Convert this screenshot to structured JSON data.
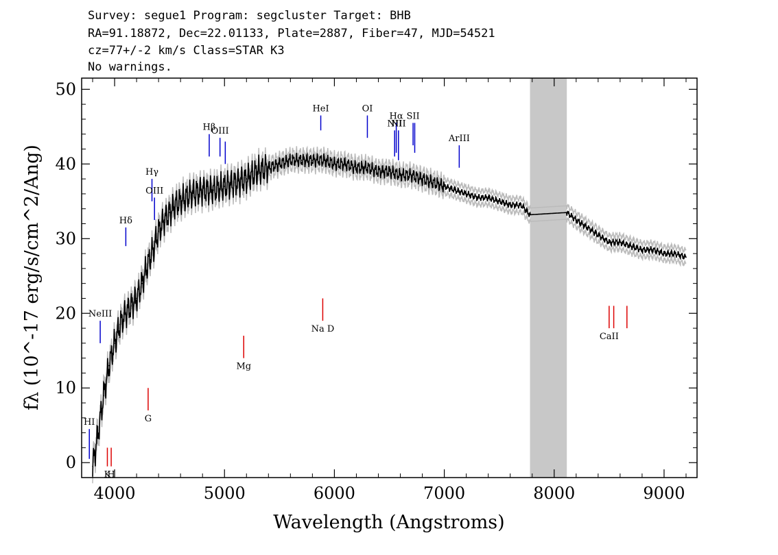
{
  "header": {
    "line1": "Survey: segue1 Program: segcluster Target: BHB",
    "line2": "RA=91.18872, Dec=22.01133, Plate=2887, Fiber=47, MJD=54521",
    "line3": "cz=77+/-2 km/s Class=STAR K3",
    "line4": "No warnings."
  },
  "chart_data": {
    "type": "line",
    "xlabel": "Wavelength (Angstroms)",
    "ylabel": "fλ (10^-17 erg/s/cm^2/Ang)",
    "xlim": [
      3700,
      9300
    ],
    "ylim": [
      -2,
      51.5
    ],
    "x_ticks": [
      4000,
      5000,
      6000,
      7000,
      8000,
      9000
    ],
    "y_ticks": [
      0,
      10,
      20,
      30,
      40,
      50
    ],
    "masked_region": [
      7780,
      8115
    ],
    "colors": {
      "flux": "#000000",
      "error_band": "#bbbbbb",
      "mask": "#c8c8c8",
      "emission": "#0000cc",
      "absorption": "#dd0000"
    },
    "series": [
      {
        "x": [
          3800,
          3850,
          3900,
          3950,
          4000,
          4050,
          4100,
          4150,
          4200,
          4250,
          4300,
          4350,
          4400,
          4450,
          4500,
          4550,
          4600,
          4700,
          4800,
          4900,
          5000,
          5100,
          5200,
          5300,
          5400,
          5500,
          5600,
          5700,
          5800,
          5900,
          6000,
          6100,
          6200,
          6300,
          6400,
          6500,
          6600,
          6700,
          6800,
          6900,
          7000,
          7100,
          7200,
          7300,
          7400,
          7500,
          7600,
          7700,
          7780,
          8115,
          8200,
          8300,
          8400,
          8500,
          8600,
          8700,
          8800,
          8900,
          9000,
          9100,
          9200
        ],
        "values": [
          -0.5,
          4,
          9,
          13,
          16,
          18.5,
          20,
          21,
          22,
          24,
          26.5,
          28.5,
          31,
          32.5,
          33.5,
          34.5,
          35,
          36,
          36.5,
          36.5,
          37,
          37.5,
          38,
          39,
          39.5,
          40,
          40.5,
          40.5,
          40.5,
          40.5,
          40,
          40,
          39.5,
          39.5,
          39,
          39,
          38.5,
          38.5,
          38,
          37.5,
          37,
          36.5,
          36,
          35.5,
          35.5,
          35,
          34.5,
          34.5,
          33.2,
          33.5,
          32.5,
          31.5,
          30.5,
          29.5,
          29.5,
          29,
          28.5,
          28.5,
          28,
          28,
          27.5
        ]
      }
    ],
    "emission_lines": [
      {
        "label": "HI",
        "x": 3770,
        "y0": 0.5,
        "y1": 4.5
      },
      {
        "label": "NeIII",
        "x": 3869,
        "y0": 16,
        "y1": 19
      },
      {
        "label": "Hδ",
        "x": 4102,
        "y0": 29,
        "y1": 31.5
      },
      {
        "label": "Hγ",
        "x": 4340,
        "y0": 35,
        "y1": 38
      },
      {
        "label": "OIII",
        "x": 4363,
        "y0": 32.5,
        "y1": 35.5
      },
      {
        "label": "Hβ",
        "x": 4861,
        "y0": 41,
        "y1": 44
      },
      {
        "label": "OIII",
        "x": 4959,
        "y0": 41,
        "y1": 43.5
      },
      {
        "label": "",
        "x": 5007,
        "y0": 40,
        "y1": 43
      },
      {
        "label": "HeI",
        "x": 5876,
        "y0": 44.5,
        "y1": 46.5
      },
      {
        "label": "OI",
        "x": 6300,
        "y0": 43.5,
        "y1": 46.5
      },
      {
        "label": "NII",
        "x": 6548,
        "y0": 41,
        "y1": 44.5
      },
      {
        "label": "Hα",
        "x": 6563,
        "y0": 41.5,
        "y1": 45.5
      },
      {
        "label": "NII",
        "x": 6583,
        "y0": 40.5,
        "y1": 44.5
      },
      {
        "label": "SII",
        "x": 6716,
        "y0": 42.5,
        "y1": 45.5
      },
      {
        "label": "",
        "x": 6731,
        "y0": 41.5,
        "y1": 45.5
      },
      {
        "label": "ArIII",
        "x": 7136,
        "y0": 39.5,
        "y1": 42.5
      }
    ],
    "absorption_lines": [
      {
        "label": "K",
        "x": 3934,
        "y0": -0.5,
        "y1": 2
      },
      {
        "label": "H",
        "x": 3969,
        "y0": -0.5,
        "y1": 2
      },
      {
        "label": "G",
        "x": 4305,
        "y0": 7,
        "y1": 10
      },
      {
        "label": "Mg",
        "x": 5175,
        "y0": 14,
        "y1": 17
      },
      {
        "label": "Na D",
        "x": 5894,
        "y0": 19,
        "y1": 22
      },
      {
        "label": "CaII",
        "x": 8500,
        "y0": 18,
        "y1": 21
      },
      {
        "label": "",
        "x": 8542,
        "y0": 18,
        "y1": 21
      },
      {
        "label": "",
        "x": 8662,
        "y0": 18,
        "y1": 21
      }
    ]
  }
}
